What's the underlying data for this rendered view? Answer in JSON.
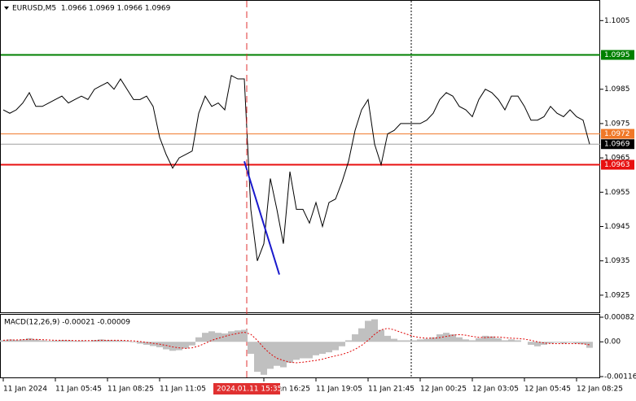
{
  "chart_data": [
    {
      "type": "line",
      "title": "EURUSD,M5  1.0966 1.0969 1.0966 1.0969",
      "categories": [
        "11 Jan 2024",
        null,
        null,
        null,
        null,
        null,
        null,
        null,
        "11 Jan 05:45",
        null,
        null,
        null,
        null,
        null,
        null,
        null,
        "11 Jan 08:25",
        null,
        null,
        null,
        null,
        null,
        null,
        null,
        "11 Jan 11:05",
        null,
        null,
        null,
        null,
        null,
        null,
        null,
        null,
        null,
        null,
        null,
        null,
        null,
        null,
        null,
        "11 Jan 16:25",
        null,
        null,
        null,
        null,
        null,
        null,
        null,
        "11 Jan 19:05",
        null,
        null,
        null,
        null,
        null,
        null,
        null,
        "11 Jan 21:45",
        null,
        null,
        null,
        null,
        null,
        null,
        null,
        "12 Jan 00:25",
        null,
        null,
        null,
        null,
        null,
        null,
        null,
        "12 Jan 03:05",
        null,
        null,
        null,
        null,
        null,
        null,
        null,
        "12 Jan 05:45",
        null,
        null,
        null,
        null,
        null,
        null,
        null,
        "12 Jan 08:25",
        null,
        null
      ],
      "series": [
        {
          "color": "#000000",
          "values": [
            1.0979,
            1.0978,
            1.0979,
            1.0981,
            1.0984,
            1.098,
            1.098,
            1.0981,
            1.0982,
            1.0983,
            1.0981,
            1.0982,
            1.0983,
            1.0982,
            1.0985,
            1.0986,
            1.0987,
            1.0985,
            1.0988,
            1.0985,
            1.0982,
            1.0982,
            1.0983,
            1.098,
            1.0971,
            1.0966,
            1.0962,
            1.0965,
            1.0966,
            1.0967,
            1.0978,
            1.0983,
            1.098,
            1.0981,
            1.0979,
            1.0989,
            1.0988,
            1.0988,
            1.095,
            1.0935,
            1.094,
            1.0959,
            1.095,
            1.094,
            1.0961,
            1.095,
            1.095,
            1.0946,
            1.0952,
            1.0945,
            1.0952,
            1.0953,
            1.0958,
            1.0964,
            1.0973,
            1.0979,
            1.0982,
            1.0969,
            1.0963,
            1.0972,
            1.0973,
            1.0975,
            1.0975,
            1.0975,
            1.0975,
            1.0976,
            1.0978,
            1.0982,
            1.0984,
            1.0983,
            1.098,
            1.0979,
            1.0977,
            1.0982,
            1.0985,
            1.0984,
            1.0982,
            1.0979,
            1.0983,
            1.0983,
            1.098,
            1.0976,
            1.0976,
            1.0977,
            1.098,
            1.0978,
            1.0977,
            1.0979,
            1.0977,
            1.0976,
            1.0969
          ]
        }
      ],
      "ylim": [
        1.092,
        1.1011
      ],
      "yticks": [
        1.1005,
        1.0985,
        1.0975,
        1.0965,
        1.0955,
        1.0945,
        1.0935,
        1.0925
      ],
      "levels": [
        {
          "value": 1.0995,
          "color": "#008000"
        },
        {
          "value": 1.0972,
          "color": "#f07828"
        },
        {
          "value": 1.0969,
          "color": "#000000"
        },
        {
          "value": 1.0963,
          "color": "#e81010"
        }
      ],
      "trendline": {
        "color": "#1a1acc",
        "from": 1.0964,
        "to": 1.0931
      },
      "crosshair_label": "2024.01.11 15:35"
    },
    {
      "type": "macd",
      "title": "MACD(12,26,9) -0.00021 -0.00009",
      "histogram": {
        "color": "#c0c0c0",
        "values": [
          5e-05,
          8e-05,
          6e-05,
          8e-05,
          0.00012,
          8e-05,
          5e-05,
          3e-05,
          4e-05,
          6e-05,
          5e-05,
          3e-05,
          4e-05,
          2e-05,
          6e-05,
          8e-05,
          6e-05,
          5e-05,
          4e-05,
          3e-05,
          -2e-05,
          -6e-05,
          -0.0001,
          -0.00014,
          -0.00018,
          -0.00025,
          -0.0003,
          -0.00028,
          -0.00022,
          -0.00012,
          0.00015,
          0.0003,
          0.00035,
          0.0003,
          0.00028,
          0.00035,
          0.00038,
          0.0004,
          -0.0004,
          -0.001,
          -0.0011,
          -0.0009,
          -0.0008,
          -0.00085,
          -0.0007,
          -0.0006,
          -0.00055,
          -0.00055,
          -0.00045,
          -0.0004,
          -0.00035,
          -0.00028,
          -0.00015,
          5e-05,
          0.00025,
          0.00045,
          0.0007,
          0.00075,
          0.0004,
          0.0002,
          0.0001,
          5e-05,
          5e-05,
          5e-05,
          8e-05,
          0.0001,
          0.00015,
          0.00025,
          0.0003,
          0.00025,
          0.00015,
          8e-05,
          5e-05,
          0.00012,
          0.0002,
          0.00018,
          0.00012,
          5e-05,
          8e-05,
          5e-05,
          0,
          -0.0001,
          -0.00015,
          -0.0001,
          -5e-05,
          -3e-05,
          -5e-05,
          -3e-05,
          -5e-05,
          -8e-05,
          -0.0002
        ]
      },
      "signal": {
        "color": "#e00000",
        "values": [
          5e-05,
          6e-05,
          6e-05,
          7e-05,
          8e-05,
          8e-05,
          7e-05,
          6e-05,
          5e-05,
          5e-05,
          5e-05,
          4e-05,
          4e-05,
          4e-05,
          4e-05,
          5e-05,
          5e-05,
          5e-05,
          5e-05,
          4e-05,
          3e-05,
          1e-05,
          -2e-05,
          -5e-05,
          -8e-05,
          -0.00012,
          -0.00017,
          -0.0002,
          -0.00022,
          -0.0002,
          -0.00014,
          -5e-05,
          5e-05,
          0.00012,
          0.00018,
          0.00024,
          0.00028,
          0.00032,
          0.00025,
          5e-05,
          -0.0002,
          -0.0004,
          -0.00055,
          -0.00062,
          -0.00068,
          -0.0007,
          -0.00068,
          -0.00065,
          -0.00062,
          -0.00058,
          -0.00052,
          -0.00047,
          -0.00042,
          -0.00035,
          -0.00025,
          -0.00012,
          5e-05,
          0.00025,
          0.0004,
          0.00045,
          0.0004,
          0.00032,
          0.00025,
          0.00018,
          0.00014,
          0.00012,
          0.00012,
          0.00014,
          0.00018,
          0.00022,
          0.00024,
          0.00022,
          0.00018,
          0.00015,
          0.00014,
          0.00016,
          0.00016,
          0.00014,
          0.00012,
          0.00011,
          9e-05,
          5e-05,
          0,
          -4e-05,
          -6e-05,
          -6e-05,
          -6e-05,
          -6e-05,
          -6e-05,
          -7e-05,
          -0.0001
        ]
      },
      "ylim": [
        -0.00116,
        0.00082
      ],
      "yticks": [
        0.00082,
        {
          "value": 0,
          "label": "0.00"
        },
        -0.00116
      ]
    }
  ]
}
